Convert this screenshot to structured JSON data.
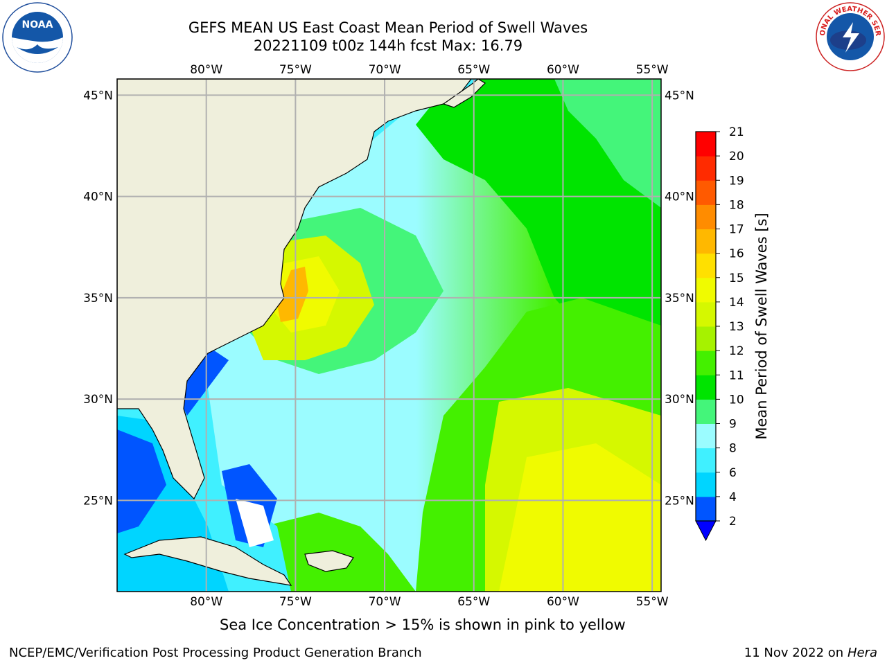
{
  "header": {
    "title_line1": "GEFS MEAN US East Coast Mean Period of Swell Waves",
    "title_line2": "20221109 t00z 144h fcst   Max: 16.79"
  },
  "logos": {
    "left": "noaa-logo",
    "right": "nws-logo",
    "left_text": "NOAA",
    "right_text": "NATIONAL WEATHER SERVICE"
  },
  "map": {
    "lon_ticks": [
      "80°W",
      "75°W",
      "70°W",
      "65°W",
      "60°W",
      "55°W"
    ],
    "lat_ticks": [
      "45°N",
      "40°N",
      "35°N",
      "30°N",
      "25°N"
    ],
    "lon_range": [
      -85,
      -54.5
    ],
    "lat_range": [
      20.5,
      45.8
    ],
    "land_color": "#efefdc",
    "grid_color": "#b0b0b0"
  },
  "colorbar": {
    "label": "Mean Period of Swell Waves [s]",
    "levels": [
      "2",
      "4",
      "6",
      "8",
      "9",
      "10",
      "11",
      "12",
      "13",
      "14",
      "15",
      "16",
      "17",
      "18",
      "19",
      "20",
      "21"
    ],
    "colors": [
      "#0055ff",
      "#00d5ff",
      "#40f0ff",
      "#9bfcff",
      "#44f57a",
      "#00e400",
      "#44f000",
      "#a6f200",
      "#d5f800",
      "#f0fb00",
      "#ffe000",
      "#ffb800",
      "#ff8c00",
      "#ff5a00",
      "#ff2b00",
      "#ff0000"
    ],
    "extend_color": "#0000ff"
  },
  "caption": "Sea Ice Concentration > 15% is shown in pink to yellow",
  "footer": {
    "left": "NCEP/EMC/Verification Post Processing Product Generation Branch",
    "right_date": "11 Nov 2022 on",
    "right_machine": "Hera"
  }
}
